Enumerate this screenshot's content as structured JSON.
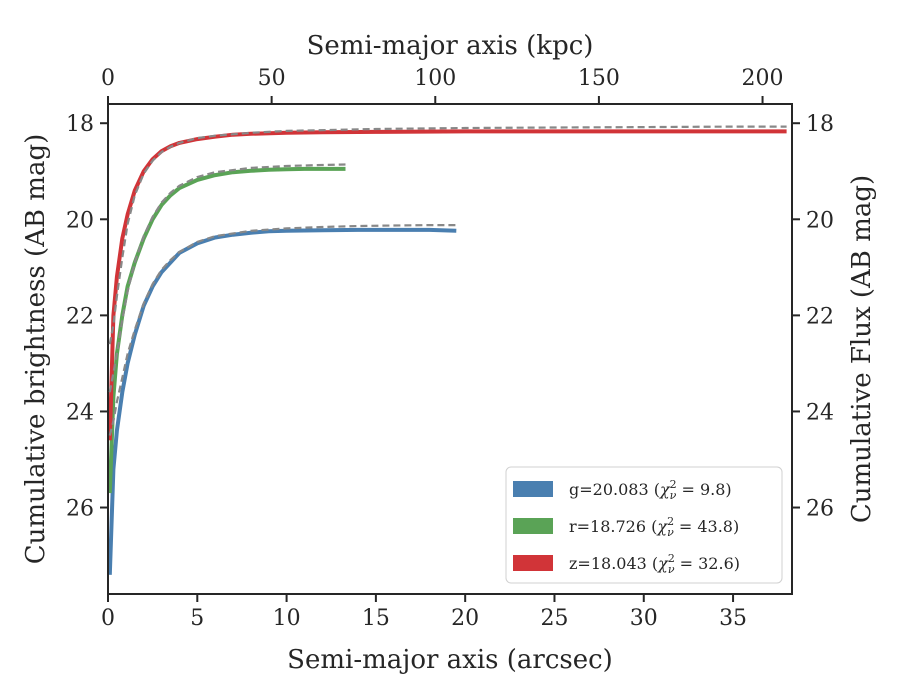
{
  "chart_data": {
    "type": "line",
    "title": "",
    "xlabel": "Semi-major axis (arcsec)",
    "ylabel": "Cumulative brightness (AB mag)",
    "x2label": "Semi-major axis (kpc)",
    "y2label": "Cumulative Flux (AB mag)",
    "xlim": [
      0,
      38.3
    ],
    "ylim": [
      27.8,
      17.6
    ],
    "y_inverted": true,
    "x2lim": [
      0,
      209
    ],
    "xticks": [
      0,
      5,
      10,
      15,
      20,
      25,
      30,
      35
    ],
    "yticks": [
      18,
      20,
      22,
      24,
      26
    ],
    "x2ticks": [
      0,
      50,
      100,
      150,
      200
    ],
    "grid": false,
    "legend_position": "bottom-right",
    "series": [
      {
        "name": "g=20.083",
        "chi_label": "χ",
        "chi_sup": "2",
        "chi_sub": "ν",
        "chi_value": " = 9.8)",
        "color": "#4a7fb0",
        "x": [
          0.1,
          0.3,
          0.5,
          0.8,
          1.1,
          1.5,
          2.0,
          2.5,
          3.0,
          3.5,
          4.0,
          5.0,
          6.0,
          7.0,
          8.0,
          9.0,
          10.0,
          12.0,
          14.0,
          16.0,
          18.0,
          19.5
        ],
        "y": [
          27.4,
          25.2,
          24.4,
          23.6,
          23.0,
          22.4,
          21.8,
          21.4,
          21.1,
          20.9,
          20.7,
          20.5,
          20.38,
          20.32,
          20.28,
          20.25,
          20.24,
          20.23,
          20.22,
          20.22,
          20.22,
          20.24
        ]
      },
      {
        "name": "r=18.726",
        "chi_label": "χ",
        "chi_sup": "2",
        "chi_sub": "ν",
        "chi_value": " = 43.8)",
        "color": "#5aa356",
        "x": [
          0.1,
          0.3,
          0.5,
          0.8,
          1.1,
          1.5,
          2.0,
          2.5,
          3.0,
          3.5,
          4.0,
          5.0,
          6.0,
          7.0,
          8.0,
          9.0,
          10.0,
          11.0,
          12.0,
          13.3
        ],
        "y": [
          25.7,
          23.7,
          22.8,
          22.0,
          21.4,
          20.9,
          20.4,
          20.0,
          19.7,
          19.5,
          19.35,
          19.18,
          19.08,
          19.02,
          18.99,
          18.97,
          18.96,
          18.95,
          18.95,
          18.95
        ]
      },
      {
        "name": "z=18.043",
        "chi_label": "χ",
        "chi_sup": "2",
        "chi_sub": "ν",
        "chi_value": " = 32.6)",
        "color": "#d13438",
        "x": [
          0.1,
          0.3,
          0.5,
          0.8,
          1.1,
          1.5,
          2.0,
          2.5,
          3.0,
          3.5,
          4.0,
          5.0,
          6.0,
          7.0,
          8.0,
          10.0,
          12.0,
          15.0,
          20.0,
          25.0,
          30.0,
          35.0,
          38.0
        ],
        "y": [
          24.6,
          22.0,
          21.2,
          20.4,
          19.9,
          19.4,
          19.0,
          18.75,
          18.58,
          18.48,
          18.41,
          18.33,
          18.28,
          18.24,
          18.22,
          18.2,
          18.19,
          18.18,
          18.17,
          18.17,
          18.17,
          18.17,
          18.17
        ]
      }
    ],
    "model_fits": [
      {
        "color": "#888888",
        "x": [
          0.1,
          0.3,
          0.5,
          0.8,
          1.1,
          1.5,
          2.0,
          2.5,
          3.0,
          3.5,
          4.0,
          5.0,
          6.0,
          8.0,
          10.0,
          12.0,
          14.0,
          16.0,
          18.0,
          19.5
        ],
        "y": [
          24.5,
          24.2,
          23.8,
          23.3,
          22.8,
          22.3,
          21.75,
          21.35,
          21.05,
          20.85,
          20.68,
          20.47,
          20.35,
          20.24,
          20.19,
          20.16,
          20.14,
          20.13,
          20.12,
          20.12
        ]
      },
      {
        "color": "#888888",
        "x": [
          0.1,
          0.3,
          0.5,
          0.8,
          1.1,
          1.5,
          2.0,
          2.5,
          3.0,
          3.5,
          4.0,
          5.0,
          6.0,
          8.0,
          10.0,
          12.0,
          13.3
        ],
        "y": [
          23.6,
          23.2,
          22.8,
          22.1,
          21.5,
          20.9,
          20.35,
          19.95,
          19.65,
          19.45,
          19.3,
          19.12,
          19.02,
          18.93,
          18.89,
          18.87,
          18.86
        ]
      },
      {
        "color": "#888888",
        "x": [
          0.1,
          0.3,
          0.5,
          0.8,
          1.1,
          1.5,
          2.0,
          2.5,
          3.0,
          3.5,
          4.0,
          5.0,
          6.0,
          8.0,
          10.0,
          15.0,
          20.0,
          25.0,
          30.0,
          35.0,
          38.0
        ],
        "y": [
          22.6,
          22.2,
          21.6,
          20.8,
          20.1,
          19.5,
          19.05,
          18.78,
          18.6,
          18.49,
          18.41,
          18.31,
          18.26,
          18.2,
          18.16,
          18.12,
          18.1,
          18.09,
          18.08,
          18.07,
          18.07
        ]
      }
    ]
  }
}
